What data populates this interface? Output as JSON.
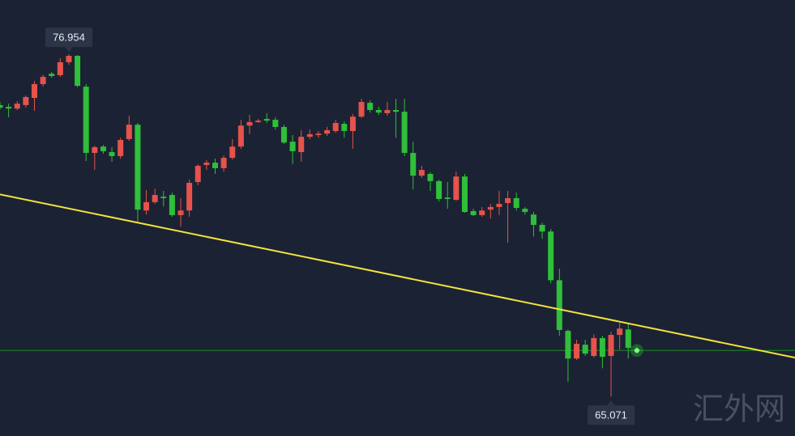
{
  "chart_data": {
    "type": "candlestick",
    "ylim": [
      63.7,
      78.84
    ],
    "up_color": "#e5534b",
    "down_color": "#2fbf3a",
    "last_price": 66.67,
    "last_price_color": "#1f8a2a",
    "trendline": {
      "start": 72.09,
      "end": 66.42,
      "color": "#f2e33a"
    },
    "high_label_index": 8,
    "low_label_index": 71,
    "categories": [
      null,
      null,
      null,
      null,
      null,
      null,
      null,
      null,
      null,
      null,
      null,
      null,
      null,
      null,
      null,
      null,
      null,
      null,
      null,
      null,
      null,
      null,
      null,
      null,
      null,
      null,
      null,
      null,
      null,
      null,
      null,
      null,
      null,
      null,
      null,
      null,
      null,
      null,
      null,
      null,
      null,
      null,
      null,
      null,
      null,
      null,
      null,
      null,
      null,
      null,
      null,
      null,
      null,
      null,
      null,
      null,
      null,
      null,
      null,
      null,
      null,
      null,
      null,
      null,
      null,
      null,
      null,
      null,
      null,
      null,
      null,
      null,
      null,
      null,
      null
    ],
    "candles": [
      [
        75.19,
        75.3,
        75.02,
        75.1
      ],
      [
        75.13,
        75.24,
        74.77,
        75.07
      ],
      [
        75.07,
        75.33,
        75.02,
        75.24
      ],
      [
        75.19,
        75.52,
        75.1,
        75.47
      ],
      [
        75.44,
        76.03,
        74.99,
        75.92
      ],
      [
        75.92,
        76.25,
        75.83,
        76.17
      ],
      [
        76.28,
        76.34,
        76.14,
        76.2
      ],
      [
        76.23,
        76.82,
        76.17,
        76.68
      ],
      [
        76.68,
        76.954,
        76.59,
        76.9
      ],
      [
        76.9,
        76.93,
        75.81,
        75.86
      ],
      [
        75.83,
        75.92,
        73.25,
        73.53
      ],
      [
        73.53,
        73.78,
        72.94,
        73.73
      ],
      [
        73.75,
        73.81,
        73.5,
        73.59
      ],
      [
        73.56,
        73.73,
        73.22,
        73.42
      ],
      [
        73.42,
        74.06,
        73.33,
        73.98
      ],
      [
        74.01,
        74.82,
        73.95,
        74.51
      ],
      [
        74.51,
        74.57,
        71.14,
        71.56
      ],
      [
        71.53,
        72.24,
        71.39,
        71.82
      ],
      [
        71.82,
        72.29,
        71.76,
        72.07
      ],
      [
        72.01,
        72.21,
        71.67,
        71.96
      ],
      [
        72.07,
        72.15,
        71.31,
        71.37
      ],
      [
        71.37,
        71.96,
        70.97,
        71.53
      ],
      [
        71.53,
        72.6,
        71.31,
        72.49
      ],
      [
        72.52,
        73.14,
        72.41,
        73.08
      ],
      [
        73.11,
        73.28,
        72.94,
        73.19
      ],
      [
        73.19,
        73.33,
        72.8,
        73.0
      ],
      [
        73.0,
        73.44,
        72.88,
        73.36
      ],
      [
        73.36,
        74.01,
        73.3,
        73.75
      ],
      [
        73.75,
        74.68,
        73.67,
        74.48
      ],
      [
        74.48,
        74.85,
        74.18,
        74.6
      ],
      [
        74.6,
        74.71,
        74.57,
        74.65
      ],
      [
        74.71,
        74.91,
        74.57,
        74.65
      ],
      [
        74.68,
        74.77,
        74.34,
        74.43
      ],
      [
        74.43,
        74.51,
        73.84,
        73.89
      ],
      [
        73.92,
        74.15,
        73.14,
        73.59
      ],
      [
        73.56,
        74.32,
        73.22,
        74.09
      ],
      [
        74.09,
        74.34,
        74.01,
        74.18
      ],
      [
        74.15,
        74.29,
        74.06,
        74.2
      ],
      [
        74.2,
        74.43,
        74.12,
        74.32
      ],
      [
        74.29,
        74.68,
        74.23,
        74.57
      ],
      [
        74.54,
        74.63,
        74.06,
        74.29
      ],
      [
        74.29,
        74.88,
        73.67,
        74.79
      ],
      [
        74.79,
        75.41,
        74.74,
        75.3
      ],
      [
        75.27,
        75.36,
        74.93,
        75.02
      ],
      [
        75.02,
        75.13,
        74.85,
        74.93
      ],
      [
        74.91,
        75.3,
        74.82,
        75.02
      ],
      [
        75.02,
        75.41,
        74.06,
        74.96
      ],
      [
        74.96,
        75.41,
        73.42,
        73.53
      ],
      [
        73.53,
        73.92,
        72.26,
        72.74
      ],
      [
        72.74,
        73.08,
        72.66,
        72.94
      ],
      [
        72.8,
        72.86,
        72.21,
        72.55
      ],
      [
        72.55,
        72.6,
        71.84,
        71.93
      ],
      [
        71.98,
        72.52,
        71.59,
        71.93
      ],
      [
        71.9,
        72.88,
        71.87,
        72.71
      ],
      [
        72.71,
        72.8,
        71.45,
        71.48
      ],
      [
        71.51,
        71.59,
        71.34,
        71.37
      ],
      [
        71.37,
        71.65,
        71.31,
        71.53
      ],
      [
        71.56,
        71.76,
        71.25,
        71.65
      ],
      [
        71.65,
        72.21,
        71.37,
        71.76
      ],
      [
        71.79,
        72.21,
        70.41,
        71.96
      ],
      [
        71.96,
        72.15,
        71.53,
        71.62
      ],
      [
        71.59,
        71.65,
        71.39,
        71.48
      ],
      [
        71.39,
        71.48,
        70.63,
        71.03
      ],
      [
        71.03,
        71.11,
        70.55,
        70.8
      ],
      [
        70.8,
        70.89,
        69.0,
        69.11
      ],
      [
        69.11,
        69.51,
        67.18,
        67.38
      ],
      [
        67.35,
        67.4,
        65.58,
        66.39
      ],
      [
        66.39,
        67.04,
        66.34,
        66.9
      ],
      [
        66.87,
        67.04,
        66.48,
        66.56
      ],
      [
        66.48,
        67.23,
        66.42,
        67.1
      ],
      [
        67.1,
        67.18,
        66.05,
        66.45
      ],
      [
        66.48,
        67.32,
        65.071,
        67.21
      ],
      [
        67.21,
        67.63,
        66.7,
        67.43
      ],
      [
        67.4,
        67.6,
        66.39,
        66.76
      ],
      [
        66.7,
        66.81,
        66.56,
        66.65
      ]
    ]
  },
  "watermark": "汇外网"
}
